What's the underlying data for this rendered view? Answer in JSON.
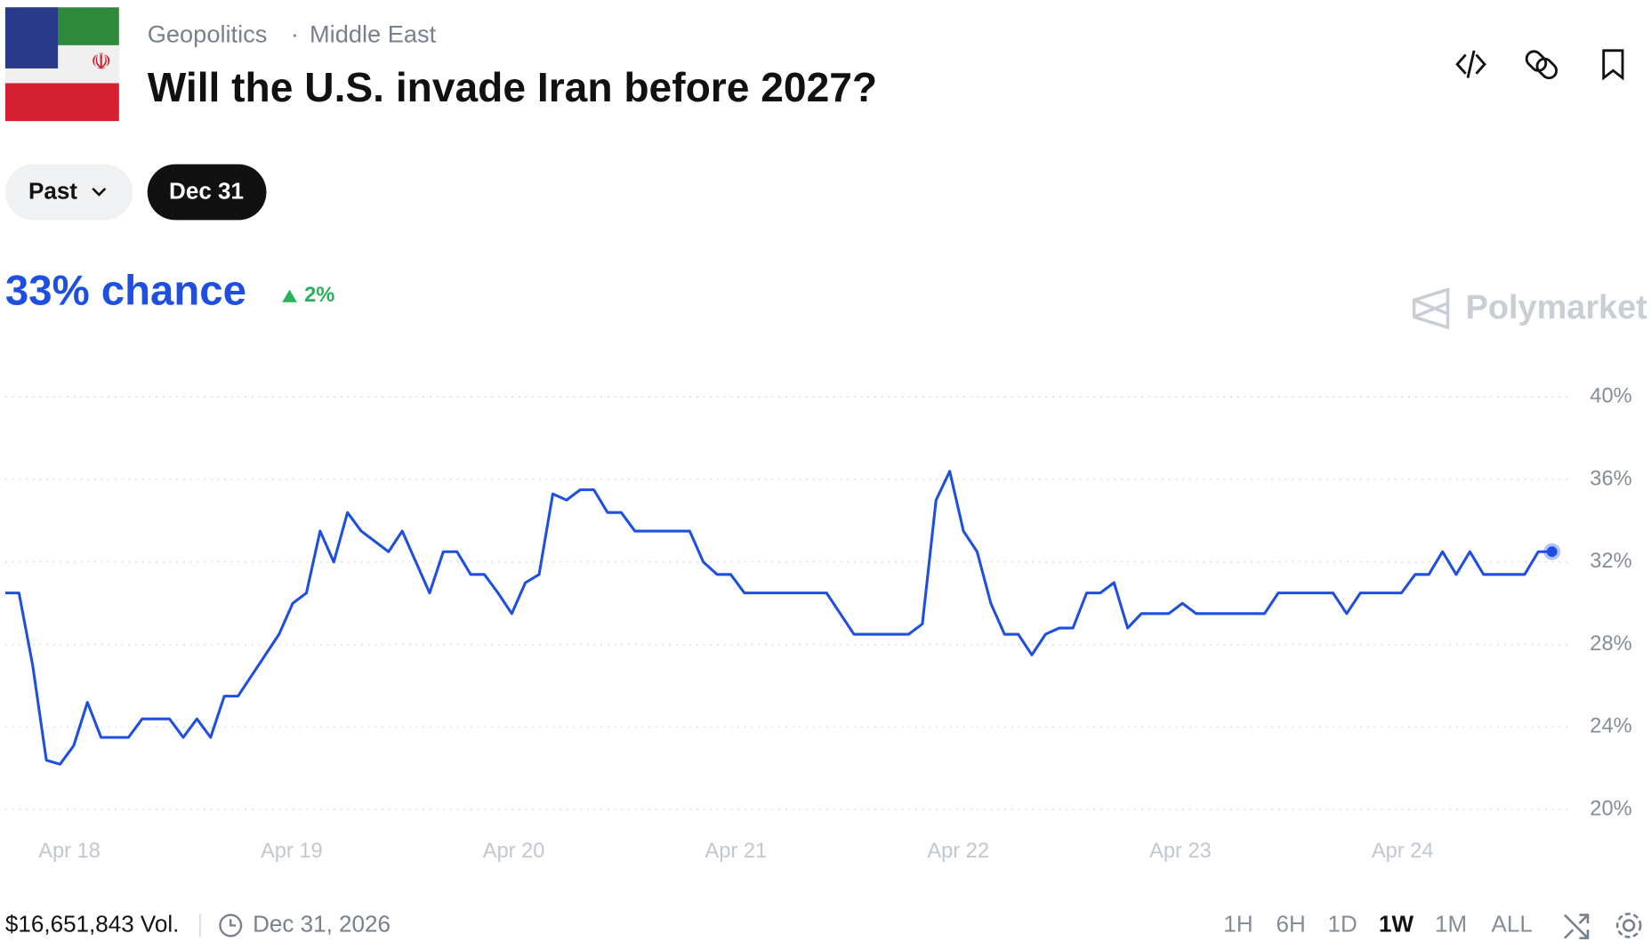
{
  "header": {
    "category": "Geopolitics",
    "subcategory": "Middle East",
    "separator": "·",
    "title": "Will the U.S. invade Iran before 2027?"
  },
  "filters": {
    "past": "Past",
    "selected": "Dec 31"
  },
  "summary": {
    "chance": "33% chance",
    "change": "2%"
  },
  "brand": "Polymarket",
  "footer": {
    "volume": "$16,651,843 Vol.",
    "end_date": "Dec 31, 2026",
    "ranges": [
      "1H",
      "6H",
      "1D",
      "1W",
      "1M",
      "ALL"
    ],
    "active_range": "1W"
  },
  "chart_data": {
    "type": "line",
    "ylim": [
      20,
      40
    ],
    "yticks": [
      {
        "value": 20,
        "label": "20%"
      },
      {
        "value": 24,
        "label": "24%"
      },
      {
        "value": 28,
        "label": "28%"
      },
      {
        "value": 32,
        "label": "32%"
      },
      {
        "value": 36,
        "label": "36%"
      },
      {
        "value": 40,
        "label": "40%"
      }
    ],
    "xlim": [
      0,
      113
    ],
    "xticks": [
      {
        "value": 4.69,
        "label": "Apr 18"
      },
      {
        "value": 20.92,
        "label": "Apr 19"
      },
      {
        "value": 37.15,
        "label": "Apr 20"
      },
      {
        "value": 53.38,
        "label": "Apr 21"
      },
      {
        "value": 69.62,
        "label": "Apr 22"
      },
      {
        "value": 85.85,
        "label": "Apr 23"
      },
      {
        "value": 102.08,
        "label": "Apr 24"
      }
    ],
    "grid": true,
    "series": [
      {
        "color": "#1f4fe0",
        "values": [
          30.5,
          30.5,
          27,
          22.4,
          22.2,
          23.1,
          25.2,
          23.5,
          23.5,
          23.5,
          24.4,
          24.4,
          24.4,
          23.5,
          24.4,
          23.5,
          25.5,
          25.5,
          26.5,
          27.5,
          28.5,
          30,
          30.5,
          33.5,
          32,
          34.4,
          33.5,
          33,
          32.5,
          33.5,
          32,
          30.5,
          32.5,
          32.5,
          31.4,
          31.4,
          30.5,
          29.5,
          31,
          31.4,
          35.3,
          35,
          35.5,
          35.5,
          34.4,
          34.4,
          33.5,
          33.5,
          33.5,
          33.5,
          33.5,
          32,
          31.4,
          31.4,
          30.5,
          30.5,
          30.5,
          30.5,
          30.5,
          30.5,
          30.5,
          29.5,
          28.5,
          28.5,
          28.5,
          28.5,
          28.5,
          29,
          35,
          36.4,
          33.5,
          32.5,
          30,
          28.5,
          28.5,
          27.5,
          28.5,
          28.8,
          28.8,
          30.5,
          30.5,
          31,
          28.8,
          29.5,
          29.5,
          29.5,
          30,
          29.5,
          29.5,
          29.5,
          29.5,
          29.5,
          29.5,
          30.5,
          30.5,
          30.5,
          30.5,
          30.5,
          29.5,
          30.5,
          30.5,
          30.5,
          30.5,
          31.4,
          31.4,
          32.5,
          31.4,
          32.5,
          31.4,
          31.4,
          31.4,
          31.4,
          32.5,
          32.5
        ]
      }
    ]
  }
}
